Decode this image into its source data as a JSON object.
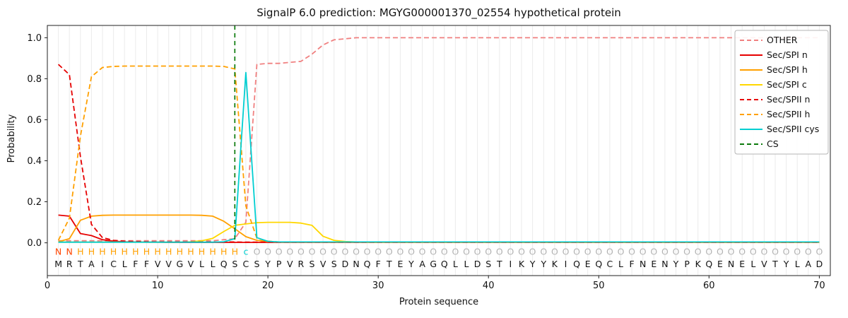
{
  "chart_data": {
    "type": "line",
    "title": "SignalP 6.0 prediction: MGYG000001370_02554 hypothetical protein",
    "xlabel": "Protein sequence",
    "ylabel": "Probability",
    "xlim": [
      0,
      71
    ],
    "ylim": [
      -0.16,
      1.06
    ],
    "xticks": [
      0,
      10,
      20,
      30,
      40,
      50,
      60,
      70
    ],
    "yticks": [
      0,
      0.2,
      0.4,
      0.6,
      0.8,
      1
    ],
    "grid": "vertical-line-per-residue",
    "legend_position": "upper right",
    "x_start": 1,
    "sequence": "MRTAICLFFVVGVLLQSCSYPVRSVSDNQFTEYAGQLLDSTIKYYKIQEQCLFNENYPKQENELVTYLAD",
    "regions": [
      {
        "label": "N",
        "from": 1,
        "to": 2,
        "color": "#ff4500"
      },
      {
        "label": "H",
        "from": 3,
        "to": 17,
        "color": "#ffa000"
      },
      {
        "label": "c",
        "from": 18,
        "to": 18,
        "color": "#00ced1"
      },
      {
        "label": "O",
        "from": 19,
        "to": 70,
        "color": "#b3b3b3"
      }
    ],
    "cs_position": 17,
    "cs_color": "#0b7a0b",
    "cs_label": "CS",
    "series": [
      {
        "name": "OTHER",
        "color": "#f08080",
        "dash": true,
        "values": [
          0.01,
          0.01,
          0.01,
          0.01,
          0.01,
          0.01,
          0.01,
          0.01,
          0.01,
          0.01,
          0.01,
          0.01,
          0.01,
          0.01,
          0.01,
          0.015,
          0.02,
          0.1,
          0.87,
          0.875,
          0.875,
          0.88,
          0.885,
          0.92,
          0.965,
          0.99,
          0.995,
          1,
          1,
          1,
          1,
          1,
          1,
          1,
          1,
          1,
          1,
          1,
          1,
          1,
          1,
          1,
          1,
          1,
          1,
          1,
          1,
          1,
          1,
          1,
          1,
          1,
          1,
          1,
          1,
          1,
          1,
          1,
          1,
          1,
          1,
          1,
          1,
          1,
          1,
          1,
          1,
          1,
          1,
          1
        ]
      },
      {
        "name": "Sec/SPI n",
        "color": "#e60000",
        "dash": false,
        "values": [
          0.135,
          0.13,
          0.045,
          0.035,
          0.015,
          0.008,
          0.005,
          0.004,
          0.003,
          0.003,
          0.002,
          0.002,
          0.002,
          0.002,
          0.002,
          0.002,
          0.002,
          0.002,
          0.002,
          0.002,
          0.002,
          0.002,
          0.002,
          0.002,
          0.002,
          0.002,
          0.002,
          0.002,
          0.002,
          0.002,
          0.002,
          0.002,
          0.002,
          0.002,
          0.002,
          0.002,
          0.002,
          0.002,
          0.002,
          0.002,
          0.002,
          0.002,
          0.002,
          0.002,
          0.002,
          0.002,
          0.002,
          0.002,
          0.002,
          0.002,
          0.002,
          0.002,
          0.002,
          0.002,
          0.002,
          0.002,
          0.002,
          0.002,
          0.002,
          0.002,
          0.002,
          0.002,
          0.002,
          0.002,
          0.002,
          0.002,
          0.002,
          0.002,
          0.002,
          0.002
        ]
      },
      {
        "name": "Sec/SPI h",
        "color": "#ffa000",
        "dash": false,
        "values": [
          0.005,
          0.02,
          0.11,
          0.13,
          0.134,
          0.135,
          0.135,
          0.135,
          0.135,
          0.135,
          0.135,
          0.135,
          0.135,
          0.134,
          0.13,
          0.105,
          0.068,
          0.03,
          0.012,
          0.006,
          0.003,
          0.003,
          0.003,
          0.003,
          0.003,
          0.003,
          0.003,
          0.003,
          0.003,
          0.003,
          0.003,
          0.003,
          0.003,
          0.003,
          0.003,
          0.003,
          0.003,
          0.003,
          0.003,
          0.003,
          0.003,
          0.003,
          0.003,
          0.003,
          0.003,
          0.003,
          0.003,
          0.003,
          0.003,
          0.003,
          0.003,
          0.003,
          0.003,
          0.003,
          0.003,
          0.003,
          0.003,
          0.003,
          0.003,
          0.003,
          0.003,
          0.003,
          0.003,
          0.003,
          0.003,
          0.003,
          0.003,
          0.003,
          0.003,
          0.003
        ]
      },
      {
        "name": "Sec/SPI c",
        "color": "#ffd700",
        "dash": false,
        "values": [
          0.003,
          0.003,
          0.003,
          0.003,
          0.003,
          0.003,
          0.003,
          0.003,
          0.003,
          0.003,
          0.003,
          0.003,
          0.005,
          0.01,
          0.022,
          0.055,
          0.085,
          0.092,
          0.098,
          0.1,
          0.1,
          0.1,
          0.096,
          0.085,
          0.032,
          0.012,
          0.006,
          0.004,
          0.003,
          0.003,
          0.003,
          0.003,
          0.003,
          0.003,
          0.003,
          0.003,
          0.003,
          0.003,
          0.003,
          0.003,
          0.003,
          0.003,
          0.003,
          0.003,
          0.003,
          0.003,
          0.003,
          0.003,
          0.003,
          0.003,
          0.003,
          0.003,
          0.003,
          0.003,
          0.003,
          0.003,
          0.003,
          0.003,
          0.003,
          0.003,
          0.003,
          0.003,
          0.003,
          0.003,
          0.003,
          0.003,
          0.003,
          0.003,
          0.003,
          0.003
        ]
      },
      {
        "name": "Sec/SPII n",
        "color": "#e60000",
        "dash": true,
        "values": [
          0.87,
          0.82,
          0.42,
          0.09,
          0.025,
          0.012,
          0.008,
          0.006,
          0.005,
          0.004,
          0.004,
          0.004,
          0.004,
          0.004,
          0.004,
          0.004,
          0.004,
          0.003,
          0.003,
          0.003,
          0.003,
          0.003,
          0.003,
          0.003,
          0.003,
          0.003,
          0.003,
          0.003,
          0.003,
          0.003,
          0.003,
          0.003,
          0.003,
          0.003,
          0.003,
          0.003,
          0.003,
          0.003,
          0.003,
          0.003,
          0.003,
          0.003,
          0.003,
          0.003,
          0.003,
          0.003,
          0.003,
          0.003,
          0.003,
          0.003,
          0.003,
          0.003,
          0.003,
          0.003,
          0.003,
          0.003,
          0.003,
          0.003,
          0.003,
          0.003,
          0.003,
          0.003,
          0.003,
          0.003,
          0.003,
          0.003,
          0.003,
          0.003,
          0.003,
          0.003
        ]
      },
      {
        "name": "Sec/SPII h",
        "color": "#ffa000",
        "dash": true,
        "values": [
          0.012,
          0.12,
          0.52,
          0.81,
          0.855,
          0.86,
          0.862,
          0.862,
          0.862,
          0.862,
          0.862,
          0.862,
          0.862,
          0.862,
          0.862,
          0.86,
          0.848,
          0.18,
          0.022,
          0.008,
          0.004,
          0.004,
          0.004,
          0.004,
          0.004,
          0.004,
          0.004,
          0.004,
          0.004,
          0.004,
          0.004,
          0.004,
          0.004,
          0.004,
          0.004,
          0.004,
          0.004,
          0.004,
          0.004,
          0.004,
          0.004,
          0.004,
          0.004,
          0.004,
          0.004,
          0.004,
          0.004,
          0.004,
          0.004,
          0.004,
          0.004,
          0.004,
          0.004,
          0.004,
          0.004,
          0.004,
          0.004,
          0.004,
          0.004,
          0.004,
          0.004,
          0.004,
          0.004,
          0.004,
          0.004,
          0.004,
          0.004,
          0.004,
          0.004,
          0.004
        ]
      },
      {
        "name": "Sec/SPII cys",
        "color": "#00ced1",
        "dash": false,
        "values": [
          0.003,
          0.003,
          0.003,
          0.003,
          0.003,
          0.003,
          0.003,
          0.003,
          0.003,
          0.003,
          0.003,
          0.003,
          0.003,
          0.003,
          0.003,
          0.005,
          0.02,
          0.83,
          0.025,
          0.007,
          0.004,
          0.004,
          0.004,
          0.004,
          0.004,
          0.004,
          0.004,
          0.004,
          0.004,
          0.004,
          0.004,
          0.004,
          0.004,
          0.004,
          0.004,
          0.004,
          0.004,
          0.004,
          0.004,
          0.004,
          0.004,
          0.004,
          0.004,
          0.004,
          0.004,
          0.004,
          0.004,
          0.004,
          0.004,
          0.004,
          0.004,
          0.004,
          0.004,
          0.004,
          0.004,
          0.004,
          0.004,
          0.004,
          0.004,
          0.004,
          0.004,
          0.004,
          0.004,
          0.004,
          0.004,
          0.004,
          0.004,
          0.004,
          0.004,
          0.004
        ]
      }
    ],
    "legend": [
      "OTHER",
      "Sec/SPI n",
      "Sec/SPI h",
      "Sec/SPI c",
      "Sec/SPII n",
      "Sec/SPII h",
      "Sec/SPII cys",
      "CS"
    ]
  }
}
